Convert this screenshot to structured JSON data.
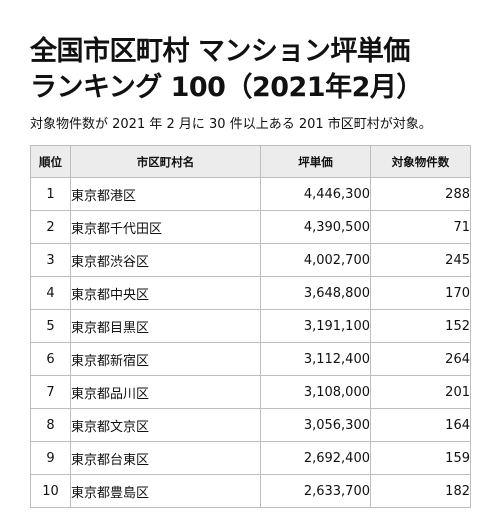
{
  "title": {
    "line1": "全国市区町村 マンション坪単価",
    "line2": "ランキング 100（2021年2月）"
  },
  "subtitle": "対象物件数が 2021 年 2 月に 30 件以上ある 201 市区町村が対象。",
  "table": {
    "headers": [
      "順位",
      "市区町村名",
      "坪単価",
      "対象物件数"
    ],
    "rows": [
      {
        "rank": "1",
        "city": "東京都港区",
        "price": "4,446,300",
        "count": "288"
      },
      {
        "rank": "2",
        "city": "東京都千代田区",
        "price": "4,390,500",
        "count": "71"
      },
      {
        "rank": "3",
        "city": "東京都渋谷区",
        "price": "4,002,700",
        "count": "245"
      },
      {
        "rank": "4",
        "city": "東京都中央区",
        "price": "3,648,800",
        "count": "170"
      },
      {
        "rank": "5",
        "city": "東京都目黒区",
        "price": "3,191,100",
        "count": "152"
      },
      {
        "rank": "6",
        "city": "東京都新宿区",
        "price": "3,112,400",
        "count": "264"
      },
      {
        "rank": "7",
        "city": "東京都品川区",
        "price": "3,108,000",
        "count": "201"
      },
      {
        "rank": "8",
        "city": "東京都文京区",
        "price": "3,056,300",
        "count": "164"
      },
      {
        "rank": "9",
        "city": "東京都台東区",
        "price": "2,692,400",
        "count": "159"
      },
      {
        "rank": "10",
        "city": "東京都豊島区",
        "price": "2,633,700",
        "count": "182"
      }
    ]
  }
}
